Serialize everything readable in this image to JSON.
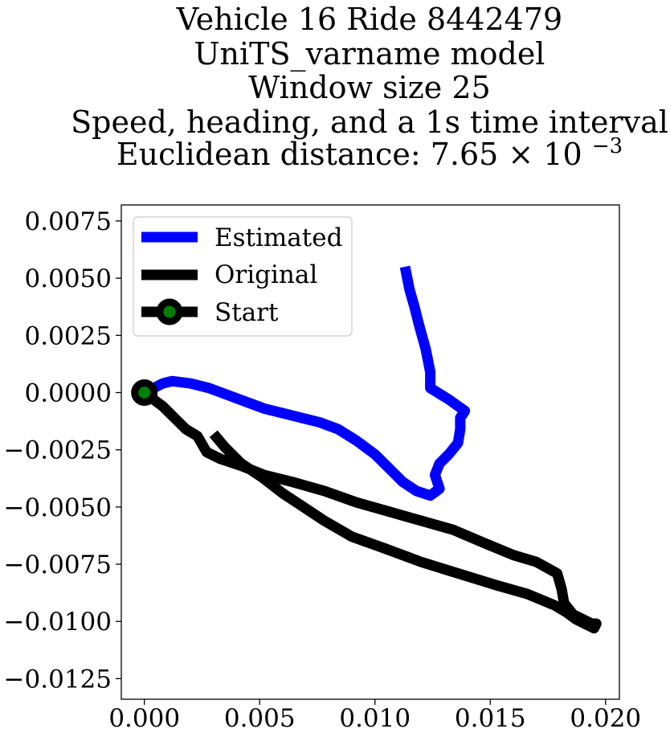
{
  "chart_data": {
    "type": "line",
    "title_lines": [
      "Vehicle 16 Ride 8442479",
      "UniTS_varname model",
      "Window size 25",
      "Speed, heading, and a 1s time interval"
    ],
    "title_distance_prefix": "Euclidean distance: 7.65",
    "title_distance_times": "×",
    "title_distance_base": "10",
    "title_distance_exponent": "−3",
    "xlabel": "",
    "ylabel": "",
    "xlim": [
      -0.001,
      0.0206
    ],
    "ylim": [
      -0.0134,
      0.0082
    ],
    "x_ticks": [
      0.0,
      0.005,
      0.01,
      0.015,
      0.02
    ],
    "x_tick_labels": [
      "0.000",
      "0.005",
      "0.010",
      "0.015",
      "0.020"
    ],
    "y_ticks": [
      0.0075,
      0.005,
      0.0025,
      0.0,
      -0.0025,
      -0.005,
      -0.0075,
      -0.01,
      -0.0125
    ],
    "y_tick_labels": [
      "0.0075",
      "0.0050",
      "0.0025",
      "0.0000",
      "−0.0025",
      "−0.0050",
      "−0.0075",
      "−0.0100",
      "−0.0125"
    ],
    "grid": false,
    "legend_position": "top-left",
    "series": [
      {
        "name": "Estimated",
        "color": "#0000ff",
        "x": [
          0.0,
          0.0004,
          0.0008,
          0.0012,
          0.002,
          0.0028,
          0.0036,
          0.0044,
          0.0052,
          0.006,
          0.0068,
          0.0076,
          0.0084,
          0.0092,
          0.01,
          0.0106,
          0.0112,
          0.0118,
          0.0124,
          0.0128,
          0.0126,
          0.0128,
          0.0132,
          0.0136,
          0.0137,
          0.0137,
          0.0139,
          0.0132,
          0.0124,
          0.0124,
          0.0122,
          0.0119,
          0.0117,
          0.0115,
          0.0113
        ],
        "y": [
          0.0,
          0.0002,
          0.0004,
          0.0005,
          0.0004,
          0.0002,
          -0.0001,
          -0.0004,
          -0.0007,
          -0.0009,
          -0.0011,
          -0.0013,
          -0.0016,
          -0.0021,
          -0.0027,
          -0.0033,
          -0.0039,
          -0.0043,
          -0.0045,
          -0.0042,
          -0.0036,
          -0.0031,
          -0.0027,
          -0.0022,
          -0.0016,
          -0.0011,
          -0.0008,
          -0.0003,
          0.0002,
          0.0009,
          0.0019,
          0.003,
          0.0038,
          0.0045,
          0.0055
        ]
      },
      {
        "name": "Original",
        "color": "#000000",
        "x": [
          0.0,
          0.0008,
          0.0013,
          0.0018,
          0.0023,
          0.0027,
          0.0033,
          0.0042,
          0.0052,
          0.0064,
          0.0078,
          0.0092,
          0.0106,
          0.012,
          0.0134,
          0.0148,
          0.016,
          0.017,
          0.0179,
          0.0181,
          0.0182,
          0.0186,
          0.019,
          0.0194,
          0.0196,
          0.0195,
          0.0191,
          0.0187,
          0.0183,
          0.0178,
          0.0166,
          0.0152,
          0.0136,
          0.012,
          0.0104,
          0.009,
          0.0078,
          0.0069,
          0.006,
          0.0051,
          0.0042,
          0.0035,
          0.003
        ],
        "y": [
          0.0,
          -0.0006,
          -0.0011,
          -0.0016,
          -0.0019,
          -0.0026,
          -0.0029,
          -0.0032,
          -0.0036,
          -0.0039,
          -0.0043,
          -0.0048,
          -0.0052,
          -0.0056,
          -0.006,
          -0.0066,
          -0.0071,
          -0.0074,
          -0.0079,
          -0.0086,
          -0.0092,
          -0.0097,
          -0.0099,
          -0.0101,
          -0.0101,
          -0.0103,
          -0.0101,
          -0.0099,
          -0.0096,
          -0.0093,
          -0.0088,
          -0.0084,
          -0.0079,
          -0.0074,
          -0.0068,
          -0.0063,
          -0.0056,
          -0.005,
          -0.0044,
          -0.0037,
          -0.0031,
          -0.0024,
          -0.0018
        ]
      },
      {
        "name": "Start",
        "marker_fill": "#008000",
        "marker_edge": "#000000",
        "x": [
          0.0
        ],
        "y": [
          0.0
        ]
      }
    ]
  }
}
